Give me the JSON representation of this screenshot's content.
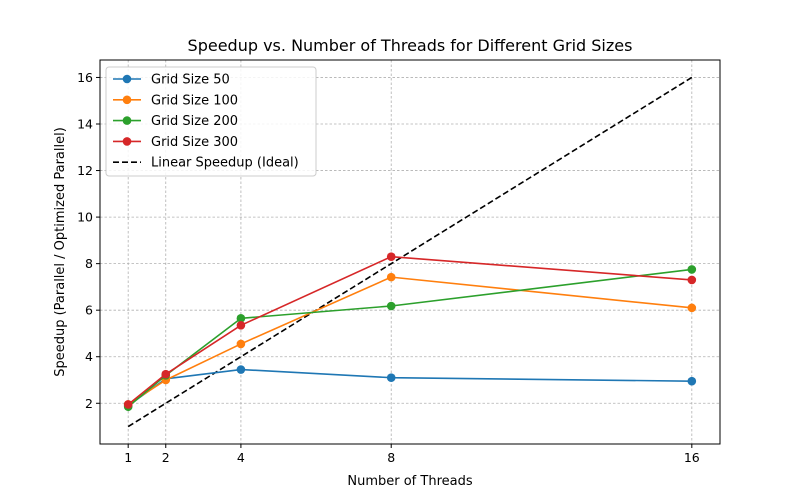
{
  "chart_data": {
    "type": "line",
    "title": "Speedup vs. Number of Threads for Different Grid Sizes",
    "xlabel": "Number of Threads",
    "ylabel": "Speedup (Parallel / Optimized Parallel)",
    "x": [
      1,
      2,
      4,
      8,
      16
    ],
    "x_ticks": [
      1,
      2,
      4,
      8,
      16
    ],
    "y_ticks": [
      2,
      4,
      6,
      8,
      10,
      12,
      14,
      16
    ],
    "xlim": [
      0.25,
      16.75
    ],
    "ylim": [
      0.25,
      16.75
    ],
    "grid": true,
    "legend_position": "top-left",
    "series": [
      {
        "name": "Grid Size 50",
        "color": "#1f77b4",
        "marker": "circle",
        "style": "solid",
        "values": [
          1.9,
          3.05,
          3.45,
          3.1,
          2.95
        ]
      },
      {
        "name": "Grid Size 100",
        "color": "#ff7f0e",
        "marker": "circle",
        "style": "solid",
        "values": [
          1.95,
          3.0,
          4.55,
          7.42,
          6.1
        ]
      },
      {
        "name": "Grid Size 200",
        "color": "#2ca02c",
        "marker": "circle",
        "style": "solid",
        "values": [
          1.85,
          3.2,
          5.65,
          6.18,
          7.75
        ]
      },
      {
        "name": "Grid Size 300",
        "color": "#d62728",
        "marker": "circle",
        "style": "solid",
        "values": [
          1.95,
          3.25,
          5.35,
          8.3,
          7.3
        ]
      },
      {
        "name": "Linear Speedup (Ideal)",
        "color": "#000000",
        "marker": "none",
        "style": "dashed",
        "values": [
          1,
          2,
          4,
          8,
          16
        ]
      }
    ]
  }
}
